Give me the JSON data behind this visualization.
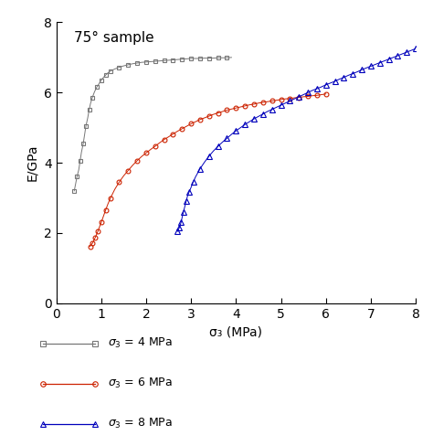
{
  "title": "75° sample",
  "xlabel": "σ₃ (MPa)",
  "ylabel": "E/GPa",
  "xlim": [
    0,
    8
  ],
  "ylim": [
    0,
    8
  ],
  "xticks": [
    0,
    1,
    2,
    3,
    4,
    5,
    6,
    7,
    8
  ],
  "yticks": [
    0,
    2,
    4,
    6,
    8
  ],
  "legend": [
    {
      "label": "$\\sigma_3$ = 4 MPa",
      "color": "#777777",
      "marker": "s"
    },
    {
      "label": "$\\sigma_3$ = 6 MPa",
      "color": "#cc2200",
      "marker": "o"
    },
    {
      "label": "$\\sigma_3$ = 8 MPa",
      "color": "#0000bb",
      "marker": "^"
    }
  ],
  "series": [
    {
      "color": "#777777",
      "marker": "s",
      "markersize": 3.5,
      "linewidth": 0.7,
      "x": [
        0.4,
        0.43,
        0.46,
        0.5,
        0.53,
        0.56,
        0.6,
        0.63,
        0.66,
        0.7,
        0.73,
        0.76,
        0.8,
        0.85,
        0.9,
        0.95,
        1.0,
        1.05,
        1.1,
        1.15,
        1.2,
        1.3,
        1.4,
        1.5,
        1.6,
        1.7,
        1.8,
        1.9,
        2.0,
        2.1,
        2.2,
        2.3,
        2.4,
        2.5,
        2.6,
        2.7,
        2.8,
        2.9,
        3.0,
        3.1,
        3.2,
        3.3,
        3.4,
        3.5,
        3.6,
        3.7,
        3.8,
        3.9
      ],
      "y": [
        3.2,
        3.4,
        3.6,
        3.8,
        4.05,
        4.3,
        4.55,
        4.8,
        5.05,
        5.28,
        5.5,
        5.68,
        5.85,
        6.02,
        6.15,
        6.25,
        6.35,
        6.43,
        6.5,
        6.56,
        6.61,
        6.67,
        6.72,
        6.76,
        6.79,
        6.82,
        6.84,
        6.86,
        6.87,
        6.88,
        6.89,
        6.9,
        6.91,
        6.92,
        6.93,
        6.94,
        6.95,
        6.96,
        6.97,
        6.97,
        6.97,
        6.98,
        6.98,
        6.98,
        6.99,
        6.99,
        6.99,
        7.0
      ]
    },
    {
      "color": "#cc2200",
      "marker": "o",
      "markersize": 3.5,
      "linewidth": 0.7,
      "x": [
        0.75,
        0.78,
        0.81,
        0.84,
        0.87,
        0.9,
        0.93,
        0.96,
        1.0,
        1.05,
        1.1,
        1.15,
        1.2,
        1.3,
        1.4,
        1.5,
        1.6,
        1.7,
        1.8,
        1.9,
        2.0,
        2.1,
        2.2,
        2.3,
        2.4,
        2.5,
        2.6,
        2.7,
        2.8,
        2.9,
        3.0,
        3.1,
        3.2,
        3.3,
        3.4,
        3.5,
        3.6,
        3.7,
        3.8,
        3.9,
        4.0,
        4.1,
        4.2,
        4.3,
        4.4,
        4.5,
        4.6,
        4.7,
        4.8,
        4.9,
        5.0,
        5.1,
        5.2,
        5.3,
        5.4,
        5.5,
        5.6,
        5.7,
        5.8,
        5.9,
        6.0
      ],
      "y": [
        1.62,
        1.67,
        1.72,
        1.8,
        1.88,
        1.97,
        2.06,
        2.17,
        2.3,
        2.48,
        2.66,
        2.83,
        2.98,
        3.24,
        3.45,
        3.63,
        3.78,
        3.93,
        4.06,
        4.18,
        4.28,
        4.38,
        4.47,
        4.57,
        4.66,
        4.74,
        4.82,
        4.9,
        4.97,
        5.04,
        5.11,
        5.17,
        5.23,
        5.28,
        5.33,
        5.38,
        5.42,
        5.46,
        5.5,
        5.53,
        5.56,
        5.59,
        5.62,
        5.65,
        5.67,
        5.7,
        5.72,
        5.74,
        5.76,
        5.78,
        5.8,
        5.82,
        5.83,
        5.85,
        5.86,
        5.88,
        5.89,
        5.91,
        5.92,
        5.94,
        5.96
      ]
    },
    {
      "color": "#0000bb",
      "marker": "^",
      "markersize": 4.0,
      "linewidth": 0.7,
      "x": [
        2.7,
        2.72,
        2.74,
        2.76,
        2.78,
        2.8,
        2.83,
        2.86,
        2.89,
        2.92,
        2.96,
        3.0,
        3.05,
        3.1,
        3.2,
        3.3,
        3.4,
        3.5,
        3.6,
        3.7,
        3.8,
        3.9,
        4.0,
        4.1,
        4.2,
        4.3,
        4.4,
        4.5,
        4.6,
        4.7,
        4.8,
        4.9,
        5.0,
        5.1,
        5.2,
        5.3,
        5.4,
        5.5,
        5.6,
        5.7,
        5.8,
        5.9,
        6.0,
        6.1,
        6.2,
        6.3,
        6.4,
        6.5,
        6.6,
        6.7,
        6.8,
        6.9,
        7.0,
        7.1,
        7.2,
        7.3,
        7.4,
        7.5,
        7.6,
        7.7,
        7.8,
        7.9,
        8.0
      ],
      "y": [
        2.05,
        2.1,
        2.16,
        2.23,
        2.32,
        2.44,
        2.6,
        2.75,
        2.9,
        3.05,
        3.18,
        3.3,
        3.46,
        3.6,
        3.83,
        4.02,
        4.19,
        4.34,
        4.47,
        4.59,
        4.7,
        4.81,
        4.91,
        5.0,
        5.09,
        5.17,
        5.25,
        5.32,
        5.39,
        5.46,
        5.52,
        5.58,
        5.64,
        5.7,
        5.76,
        5.82,
        5.88,
        5.94,
        6.0,
        6.06,
        6.11,
        6.16,
        6.22,
        6.27,
        6.32,
        6.38,
        6.43,
        6.49,
        6.54,
        6.59,
        6.65,
        6.7,
        6.75,
        6.8,
        6.85,
        6.9,
        6.95,
        7.0,
        7.05,
        7.1,
        7.15,
        7.2,
        7.25
      ]
    }
  ]
}
